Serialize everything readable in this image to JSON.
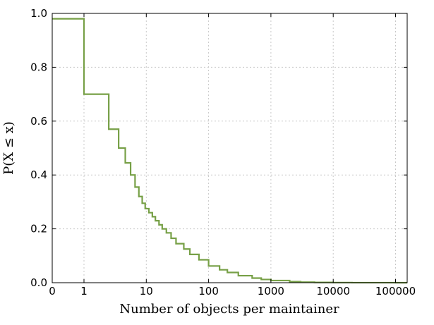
{
  "chart_data": {
    "type": "line",
    "step": true,
    "title": "",
    "xlabel": "Number of objects per maintainer",
    "ylabel": "P(X ≤ x)",
    "x_scale": "symlog",
    "x_ticks": [
      "0",
      "1",
      "10",
      "100",
      "1000",
      "10000",
      "100000"
    ],
    "y_ticks": [
      "0.0",
      "0.2",
      "0.4",
      "0.6",
      "0.8",
      "1.0"
    ],
    "ylim": [
      0,
      1
    ],
    "grid": true,
    "legend": "none",
    "series": [
      {
        "color": "#77a047",
        "x": [
          0,
          1,
          2.5,
          3.6,
          4.6,
          5.6,
          6.6,
          7.6,
          8.6,
          9.6,
          11,
          12.5,
          14,
          16,
          18,
          21,
          25,
          30,
          40,
          50,
          70,
          100,
          150,
          200,
          300,
          500,
          700,
          1000,
          2000,
          3000,
          5000,
          10000,
          20000,
          50000,
          100000,
          400000
        ],
        "y": [
          0.98,
          0.7,
          0.57,
          0.5,
          0.445,
          0.4,
          0.355,
          0.32,
          0.295,
          0.275,
          0.26,
          0.245,
          0.23,
          0.215,
          0.2,
          0.185,
          0.165,
          0.145,
          0.125,
          0.105,
          0.085,
          0.062,
          0.048,
          0.038,
          0.026,
          0.017,
          0.012,
          0.008,
          0.004,
          0.002,
          0.001,
          0.0005,
          0.0002,
          0.0001,
          0.0,
          0.0
        ]
      }
    ]
  }
}
